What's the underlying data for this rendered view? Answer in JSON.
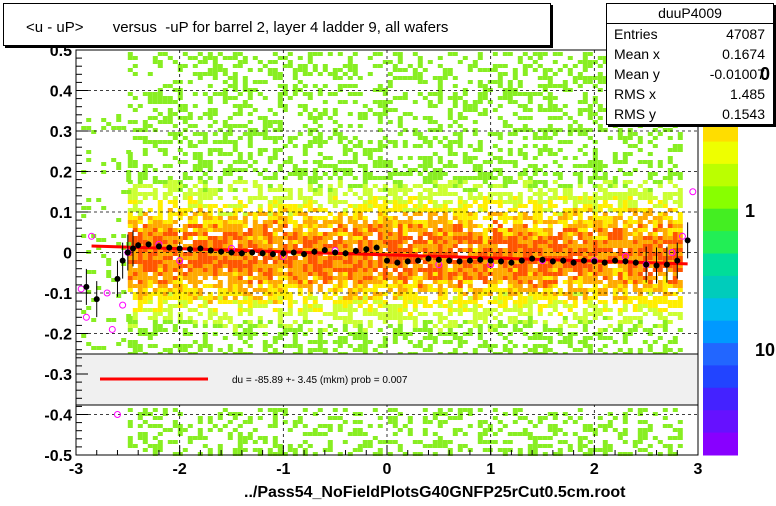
{
  "title": "<u - uP>       versus  -uP for barrel 2, layer 4 ladder 9, all wafers",
  "filename": "../Pass54_NoFieldPlotsG40GNFP25rCut0.5cm.root",
  "stats": {
    "name": "duuP4009",
    "rows": [
      {
        "label": "Entries",
        "value": "47087"
      },
      {
        "label": "Mean x",
        "value": "0.1674"
      },
      {
        "label": "Mean y",
        "value": "-0.01007"
      },
      {
        "label": "RMS x",
        "value": "1.485"
      },
      {
        "label": "RMS y",
        "value": "0.1543"
      }
    ]
  },
  "fit_legend": "du =  -85.89 +-  3.45 (mkm) prob = 0.007",
  "palette_labels": [
    "0",
    "1",
    "10"
  ],
  "colors": {
    "mean_marker": "#000000",
    "open_marker": "#ff00ff",
    "fit_line": "#ff0000",
    "grid": "#000000"
  },
  "chart_data": {
    "type": "heatmap",
    "title": "<u - uP>       versus  -uP for barrel 2, layer 4 ladder 9, all wafers",
    "xlabel": "",
    "ylabel": "",
    "xlim": [
      -3,
      3
    ],
    "ylim": [
      -0.5,
      0.5
    ],
    "x_ticks": [
      "-3",
      "-2",
      "-1",
      "0",
      "1",
      "2",
      "3"
    ],
    "y_ticks": [
      "-0.5",
      "-0.4",
      "-0.3",
      "-0.2",
      "-0.1",
      "0",
      "0.1",
      "0.2",
      "0.3",
      "0.4",
      "0.5"
    ],
    "grid": true,
    "fit": {
      "type": "line",
      "x": [
        -2.85,
        2.9
      ],
      "y": [
        0.016,
        -0.028
      ]
    },
    "mean_profile": {
      "x": [
        -2.9,
        -2.8,
        -2.6,
        -2.55,
        -2.5,
        -2.45,
        -2.4,
        -2.3,
        -2.2,
        -2.1,
        -2.0,
        -1.9,
        -1.8,
        -1.7,
        -1.6,
        -1.5,
        -1.4,
        -1.3,
        -1.2,
        -1.1,
        -1.0,
        -0.9,
        -0.8,
        -0.7,
        -0.6,
        -0.5,
        -0.4,
        -0.3,
        -0.2,
        -0.1,
        0.0,
        0.1,
        0.2,
        0.3,
        0.4,
        0.5,
        0.6,
        0.7,
        0.8,
        0.9,
        1.0,
        1.1,
        1.2,
        1.3,
        1.4,
        1.5,
        1.6,
        1.7,
        1.8,
        1.9,
        2.0,
        2.1,
        2.2,
        2.3,
        2.4,
        2.5,
        2.6,
        2.7,
        2.8,
        2.9
      ],
      "y": [
        -0.085,
        -0.115,
        -0.065,
        -0.02,
        0.0,
        0.01,
        0.018,
        0.02,
        0.015,
        0.012,
        0.01,
        0.008,
        0.01,
        0.005,
        0.002,
        0.0,
        -0.002,
        0.0,
        -0.002,
        -0.004,
        -0.002,
        0.0,
        -0.004,
        0.002,
        0.006,
        0.0,
        -0.002,
        0.004,
        0.008,
        0.012,
        -0.02,
        -0.025,
        -0.022,
        -0.02,
        -0.015,
        -0.018,
        -0.02,
        -0.022,
        -0.02,
        -0.018,
        -0.02,
        -0.022,
        -0.025,
        -0.02,
        -0.015,
        -0.018,
        -0.022,
        -0.02,
        -0.025,
        -0.02,
        -0.022,
        -0.025,
        -0.02,
        -0.022,
        -0.025,
        -0.03,
        -0.032,
        -0.03,
        -0.02,
        0.03
      ]
    },
    "open_markers": {
      "x": [
        -2.95,
        -2.9,
        -2.85,
        -2.7,
        -2.6,
        -2.55,
        -2.65,
        -2.5,
        -2.2,
        -2.0,
        -1.5,
        -1.0,
        -0.5,
        0.5,
        1.0,
        1.5,
        2.0,
        2.3,
        2.5,
        2.75,
        2.85,
        2.95
      ],
      "y": [
        -0.09,
        -0.16,
        0.04,
        -0.1,
        -0.4,
        -0.13,
        -0.19,
        0.0,
        0.02,
        -0.02,
        0.01,
        -0.01,
        0.005,
        -0.03,
        -0.03,
        -0.02,
        -0.02,
        -0.01,
        -0.03,
        0.0,
        0.04,
        0.15
      ]
    },
    "colorbar": {
      "scale": "log",
      "labels": [
        "0",
        "1",
        "10"
      ]
    }
  }
}
